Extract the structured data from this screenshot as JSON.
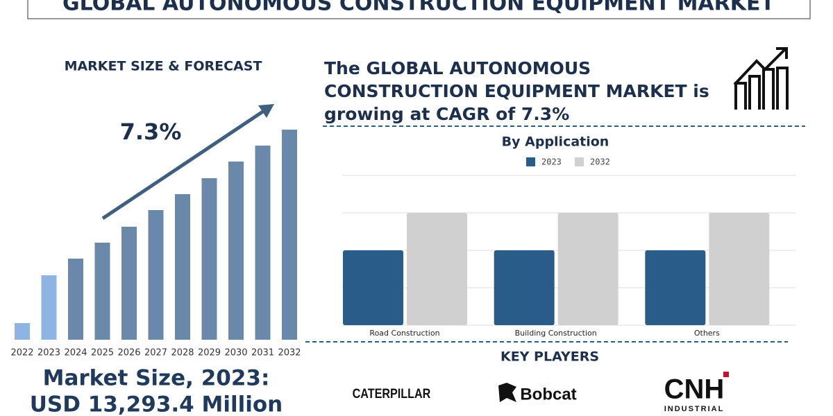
{
  "title": "GLOBAL AUTONOMOUS CONSTRUCTION EQUIPMENT MARKET",
  "left_heading": "MARKET SIZE & FORECAST",
  "cagr_label": "7.3%",
  "headline": [
    "The GLOBAL AUTONOMOUS",
    "CONSTRUCTION EQUIPMENT MARKET is",
    "growing at CAGR of 7.3%"
  ],
  "market_size": [
    "Market Size, 2023:",
    "USD 13,293.4 Million"
  ],
  "key_players_title": "KEY PLAYERS",
  "key_players": [
    "CATERPILLAR",
    "Bobcat",
    "CNH",
    "INDUSTRIAL"
  ],
  "chart_data": [
    {
      "type": "bar",
      "categories": [
        "2022",
        "2023",
        "2024",
        "2025",
        "2026",
        "2027",
        "2028",
        "2029",
        "2030",
        "2031",
        "2032"
      ],
      "values": [
        24,
        93,
        117,
        140,
        163,
        187,
        210,
        233,
        257,
        280,
        303
      ],
      "colors": [
        "#8db4e2",
        "#8db4e2",
        "#6a88aa",
        "#6a88aa",
        "#6a88aa",
        "#6a88aa",
        "#6a88aa",
        "#6a88aa",
        "#6a88aa",
        "#6a88aa",
        "#6a88aa"
      ]
    },
    {
      "type": "grouped_bar",
      "title": "By Application",
      "categories": [
        "Road Construction",
        "Building Construction",
        "Others"
      ],
      "series": [
        {
          "name": "2023",
          "color": "#2a5c8a",
          "values": [
            2,
            2,
            2
          ]
        },
        {
          "name": "2032",
          "color": "#d0d0d0",
          "values": [
            3,
            3,
            3
          ]
        }
      ],
      "ylim": [
        0,
        4
      ],
      "gridlines": [
        0,
        1,
        2,
        3,
        4
      ],
      "grid": true
    }
  ]
}
